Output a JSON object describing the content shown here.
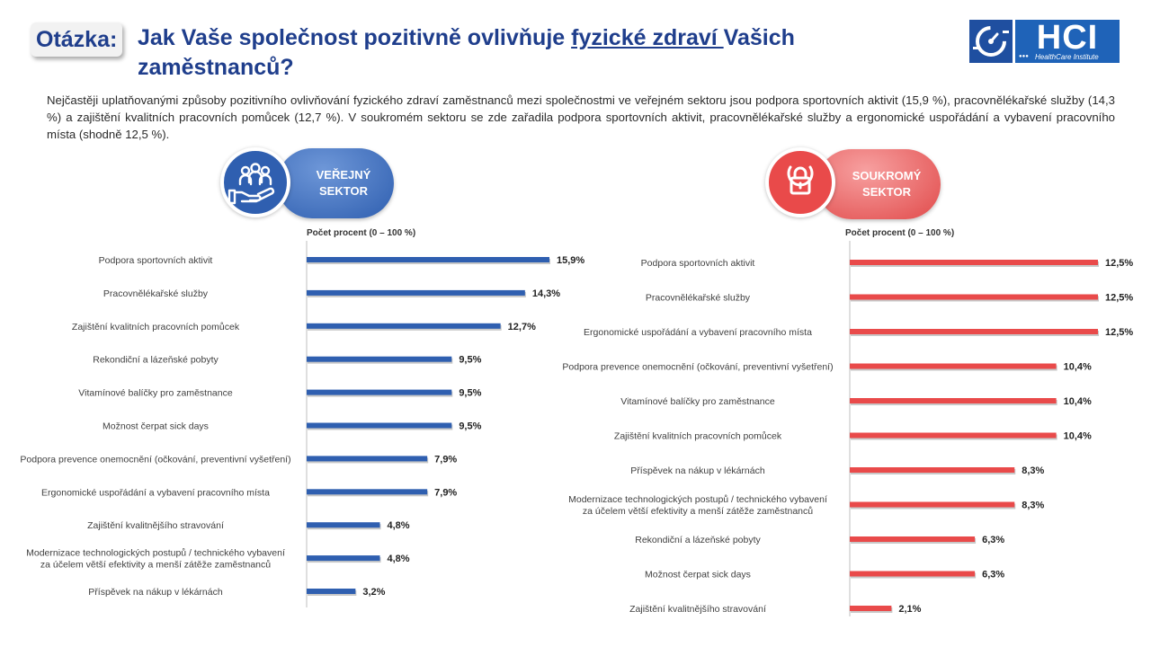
{
  "header": {
    "question_label": "Otázka:",
    "title_part1": "Jak Vaše společnost pozitivně ovlivňuje ",
    "title_underlined": "fyzické zdraví ",
    "title_part2": "Vašich",
    "title_line2": "zaměstnanců?"
  },
  "logo": {
    "text": "HCI",
    "subtitle": "HealthCare Institute"
  },
  "intro_text": "Nejčastěji uplatňovanými způsoby pozitivního ovlivňování fyzického zdraví zaměstnanců mezi společnostmi ve veřejném sektoru jsou podpora sportovních aktivit (15,9 %), pracovnělékařské služby (14,3 %) a zajištění kvalitních pracovních pomůcek (12,7 %). V soukromém sektoru se zde zařadila podpora sportovních aktivit, pracovnělékařské služby a ergonomické uspořádání a vybavení pracovního místa (shodně 12,5 %).",
  "public_sector": {
    "line1": "VEŘEJNÝ",
    "line2": "SEKTOR",
    "icon": "people-hand-icon"
  },
  "private_sector": {
    "line1": "SOUKROMÝ",
    "line2": "SEKTOR",
    "icon": "lock-icon"
  },
  "chart_data": [
    {
      "type": "bar",
      "orientation": "horizontal",
      "axis_title": "Počet procent  (0 – 100 %)",
      "color": "#2f5fb0",
      "categories": [
        [
          "Podpora sportovních aktivit"
        ],
        [
          "Pracovnělékařské služby"
        ],
        [
          "Zajištění kvalitních pracovních pomůcek"
        ],
        [
          "Rekondiční a lázeňské pobyty"
        ],
        [
          "Vitamínové balíčky pro zaměstnance"
        ],
        [
          "Možnost čerpat sick days"
        ],
        [
          "Podpora prevence onemocnění (očkování, preventivní vyšetření)"
        ],
        [
          "Ergonomické uspořádání a vybavení pracovního místa"
        ],
        [
          "Zajištění kvalitnějšího stravování"
        ],
        [
          "Modernizace technologických postupů / technického vybavení",
          "za účelem větší efektivity a menší zátěže zaměstnanců"
        ],
        [
          "Příspěvek na nákup v lékárnách"
        ]
      ],
      "values": [
        15.9,
        14.3,
        12.7,
        9.5,
        9.5,
        9.5,
        7.9,
        7.9,
        4.8,
        4.8,
        3.2
      ],
      "value_labels": [
        "15,9%",
        "14,3%",
        "12,7%",
        "9,5%",
        "9,5%",
        "9,5%",
        "7,9%",
        "7,9%",
        "4,8%",
        "4,8%",
        "3,2%"
      ]
    },
    {
      "type": "bar",
      "orientation": "horizontal",
      "axis_title": "Počet procent  (0 – 100 %)",
      "color": "#e94a4a",
      "categories": [
        [
          "Podpora sportovních aktivit"
        ],
        [
          "Pracovnělékařské služby"
        ],
        [
          "Ergonomické uspořádání a vybavení pracovního místa"
        ],
        [
          "Podpora prevence onemocnění (očkování, preventivní vyšetření)"
        ],
        [
          "Vitamínové balíčky pro zaměstnance"
        ],
        [
          "Zajištění kvalitních pracovních pomůcek"
        ],
        [
          "Příspěvek na nákup v lékárnách"
        ],
        [
          "Modernizace technologických postupů / technického vybavení",
          "za účelem větší efektivity a menší zátěže zaměstnanců"
        ],
        [
          "Rekondiční a lázeňské pobyty"
        ],
        [
          "Možnost čerpat sick days"
        ],
        [
          "Zajištění kvalitnějšího stravování"
        ]
      ],
      "values": [
        12.5,
        12.5,
        12.5,
        10.4,
        10.4,
        10.4,
        8.3,
        8.3,
        6.3,
        6.3,
        2.1
      ],
      "value_labels": [
        "12,5%",
        "12,5%",
        "12,5%",
        "10,4%",
        "10,4%",
        "10,4%",
        "8,3%",
        "8,3%",
        "6,3%",
        "6,3%",
        "2,1%"
      ]
    }
  ]
}
